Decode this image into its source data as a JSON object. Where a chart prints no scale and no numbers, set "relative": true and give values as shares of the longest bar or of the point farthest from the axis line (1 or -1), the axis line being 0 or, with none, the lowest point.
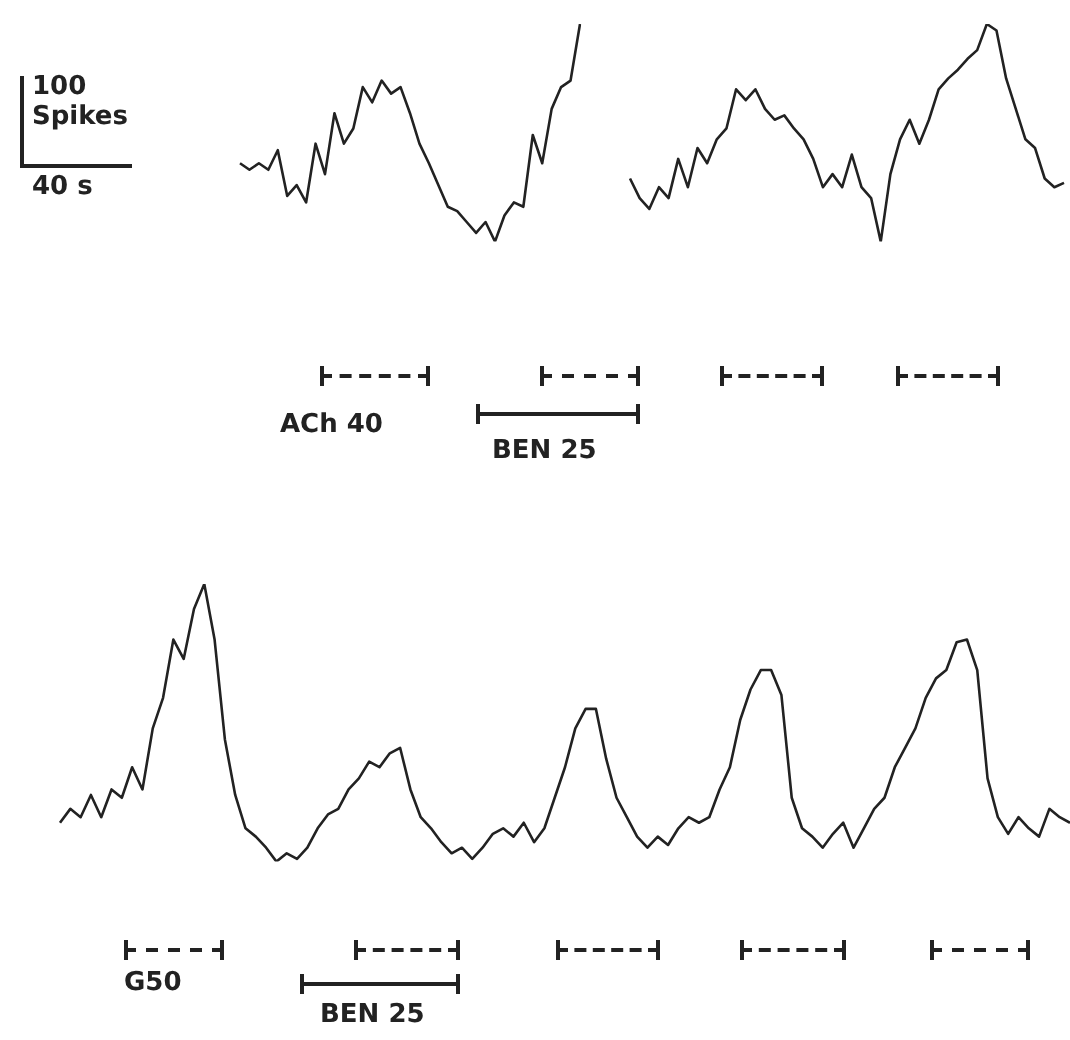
{
  "chart_data": [
    {
      "type": "line",
      "relative": true,
      "marker": "none",
      "line_style": "solid",
      "annotations": [
        "100 Spikes",
        "40 s",
        "ACh 40",
        "BEN 25"
      ],
      "categories": [
        null,
        null,
        null,
        null,
        null,
        null,
        null,
        null,
        null,
        null,
        null,
        null,
        null,
        null,
        null,
        null,
        null,
        null,
        null,
        null,
        null,
        null,
        null,
        null,
        null,
        null,
        null,
        null,
        null,
        null,
        null,
        null,
        null,
        null,
        null,
        null,
        null
      ],
      "series": [
        {
          "color": "#222222",
          "values": [
            0.36,
            0.33,
            0.36,
            0.33,
            0.42,
            0.21,
            0.26,
            0.18,
            0.45,
            0.31,
            0.59,
            0.45,
            0.52,
            0.71,
            0.64,
            0.74,
            0.68,
            0.71,
            0.59,
            0.45,
            0.36,
            0.26,
            0.16,
            0.14,
            0.09,
            0.04,
            0.09,
            0,
            0.12,
            0.18,
            0.16,
            0.49,
            0.36,
            0.61,
            0.71,
            0.74,
            1
          ]
        }
      ]
    },
    {
      "type": "line",
      "relative": true,
      "marker": "none",
      "line_style": "solid",
      "categories": [
        null,
        null,
        null,
        null,
        null,
        null,
        null,
        null,
        null,
        null,
        null,
        null,
        null,
        null,
        null,
        null,
        null,
        null,
        null,
        null,
        null,
        null,
        null,
        null,
        null,
        null,
        null,
        null,
        null,
        null,
        null,
        null,
        null,
        null,
        null,
        null,
        null,
        null,
        null,
        null,
        null,
        null,
        null,
        null,
        null,
        null
      ],
      "series": [
        {
          "color": "#222222",
          "values": [
            0.29,
            0.2,
            0.15,
            0.25,
            0.2,
            0.38,
            0.25,
            0.43,
            0.36,
            0.47,
            0.52,
            0.7,
            0.65,
            0.7,
            0.61,
            0.56,
            0.58,
            0.52,
            0.47,
            0.38,
            0.25,
            0.31,
            0.25,
            0.4,
            0.25,
            0.2,
            0,
            0.31,
            0.47,
            0.56,
            0.45,
            0.56,
            0.7,
            0.75,
            0.79,
            0.84,
            0.88,
            1,
            0.97,
            0.75,
            0.61,
            0.47,
            0.43,
            0.29,
            0.25,
            0.27
          ]
        }
      ]
    },
    {
      "type": "line",
      "relative": true,
      "marker": "none",
      "line_style": "solid",
      "annotations": [
        "G50",
        "BEN 25"
      ],
      "categories": [
        null,
        null,
        null,
        null,
        null,
        null,
        null,
        null,
        null,
        null,
        null,
        null,
        null,
        null,
        null,
        null,
        null,
        null,
        null,
        null,
        null,
        null,
        null,
        null,
        null,
        null,
        null,
        null,
        null,
        null,
        null,
        null,
        null,
        null,
        null,
        null,
        null,
        null,
        null,
        null,
        null,
        null,
        null,
        null,
        null,
        null,
        null,
        null,
        null,
        null,
        null,
        null,
        null,
        null,
        null,
        null,
        null,
        null,
        null,
        null,
        null,
        null,
        null,
        null,
        null,
        null,
        null,
        null,
        null,
        null,
        null,
        null,
        null,
        null,
        null,
        null,
        null,
        null,
        null,
        null,
        null,
        null,
        null,
        null,
        null,
        null,
        null,
        null,
        null,
        null,
        null,
        null,
        null,
        null,
        null,
        null,
        null,
        null,
        null
      ],
      "series": [
        {
          "color": "#222222",
          "values": [
            0.14,
            0.19,
            0.16,
            0.24,
            0.16,
            0.26,
            0.23,
            0.34,
            0.26,
            0.48,
            0.59,
            0.8,
            0.73,
            0.91,
            1,
            0.8,
            0.44,
            0.24,
            0.12,
            0.09,
            0.05,
            0,
            0.03,
            0.01,
            0.05,
            0.12,
            0.17,
            0.19,
            0.26,
            0.3,
            0.36,
            0.34,
            0.39,
            0.41,
            0.26,
            0.16,
            0.12,
            0.07,
            0.03,
            0.05,
            0.01,
            0.05,
            0.1,
            0.12,
            0.09,
            0.14,
            0.07,
            0.12,
            0.23,
            0.34,
            0.48,
            0.55,
            0.55,
            0.37,
            0.23,
            0.16,
            0.09,
            0.05,
            0.09,
            0.06,
            0.12,
            0.16,
            0.14,
            0.16,
            0.26,
            0.34,
            0.51,
            0.62,
            0.69,
            0.69,
            0.6,
            0.23,
            0.12,
            0.09,
            0.05,
            0.1,
            0.14,
            0.05,
            0.12,
            0.19,
            0.23,
            0.34,
            0.41,
            0.48,
            0.59,
            0.66,
            0.69,
            0.79,
            0.8,
            0.69,
            0.3,
            0.16,
            0.1,
            0.16,
            0.12,
            0.09,
            0.19,
            0.16,
            0.14
          ]
        }
      ]
    }
  ]
}
